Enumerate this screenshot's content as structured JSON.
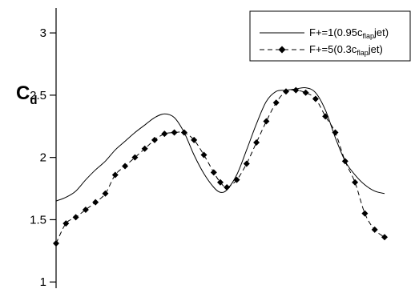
{
  "chart_data": {
    "type": "line",
    "title": "",
    "xlabel": "",
    "ylabel": "C",
    "ylabel_subscript": "d",
    "ylim": [
      0.95,
      3.2
    ],
    "yticks": [
      1,
      1.5,
      2,
      2.5,
      3
    ],
    "ytick_labels": [
      "1",
      "1.5",
      "2",
      "2.5",
      "3"
    ],
    "grid": false,
    "legend_position": "top-right",
    "series": [
      {
        "name_prefix": "F+=1(0.95c",
        "name_subscript": "flap",
        "name_suffix": "jet)",
        "style": "solid",
        "markers": false,
        "x": [
          0.0,
          0.03,
          0.06,
          0.09,
          0.12,
          0.15,
          0.18,
          0.21,
          0.24,
          0.27,
          0.3,
          0.33,
          0.36,
          0.39,
          0.42,
          0.45,
          0.48,
          0.5,
          0.52,
          0.55,
          0.58,
          0.61,
          0.64,
          0.67,
          0.7,
          0.73,
          0.76,
          0.79,
          0.82,
          0.85,
          0.88,
          0.91,
          0.94,
          0.97,
          1.0
        ],
        "values": [
          1.65,
          1.68,
          1.73,
          1.82,
          1.9,
          1.97,
          2.06,
          2.13,
          2.2,
          2.26,
          2.32,
          2.35,
          2.32,
          2.2,
          2.02,
          1.87,
          1.76,
          1.72,
          1.74,
          1.86,
          2.06,
          2.27,
          2.45,
          2.53,
          2.54,
          2.55,
          2.56,
          2.52,
          2.38,
          2.16,
          1.97,
          1.86,
          1.78,
          1.73,
          1.71
        ]
      },
      {
        "name_prefix": "F+=5(0.3c",
        "name_subscript": "flap",
        "name_suffix": "jet)",
        "style": "dashed",
        "markers": true,
        "x": [
          0.0,
          0.03,
          0.06,
          0.09,
          0.12,
          0.15,
          0.18,
          0.21,
          0.24,
          0.27,
          0.3,
          0.33,
          0.36,
          0.39,
          0.42,
          0.45,
          0.48,
          0.5,
          0.52,
          0.55,
          0.58,
          0.61,
          0.64,
          0.67,
          0.7,
          0.73,
          0.76,
          0.79,
          0.82,
          0.85,
          0.88,
          0.91,
          0.94,
          0.97,
          1.0
        ],
        "values": [
          1.31,
          1.47,
          1.52,
          1.58,
          1.64,
          1.71,
          1.86,
          1.93,
          2.0,
          2.07,
          2.14,
          2.19,
          2.2,
          2.2,
          2.14,
          2.02,
          1.88,
          1.8,
          1.76,
          1.82,
          1.95,
          2.12,
          2.29,
          2.44,
          2.53,
          2.54,
          2.52,
          2.47,
          2.33,
          2.2,
          1.97,
          1.8,
          1.55,
          1.42,
          1.36
        ]
      }
    ]
  }
}
